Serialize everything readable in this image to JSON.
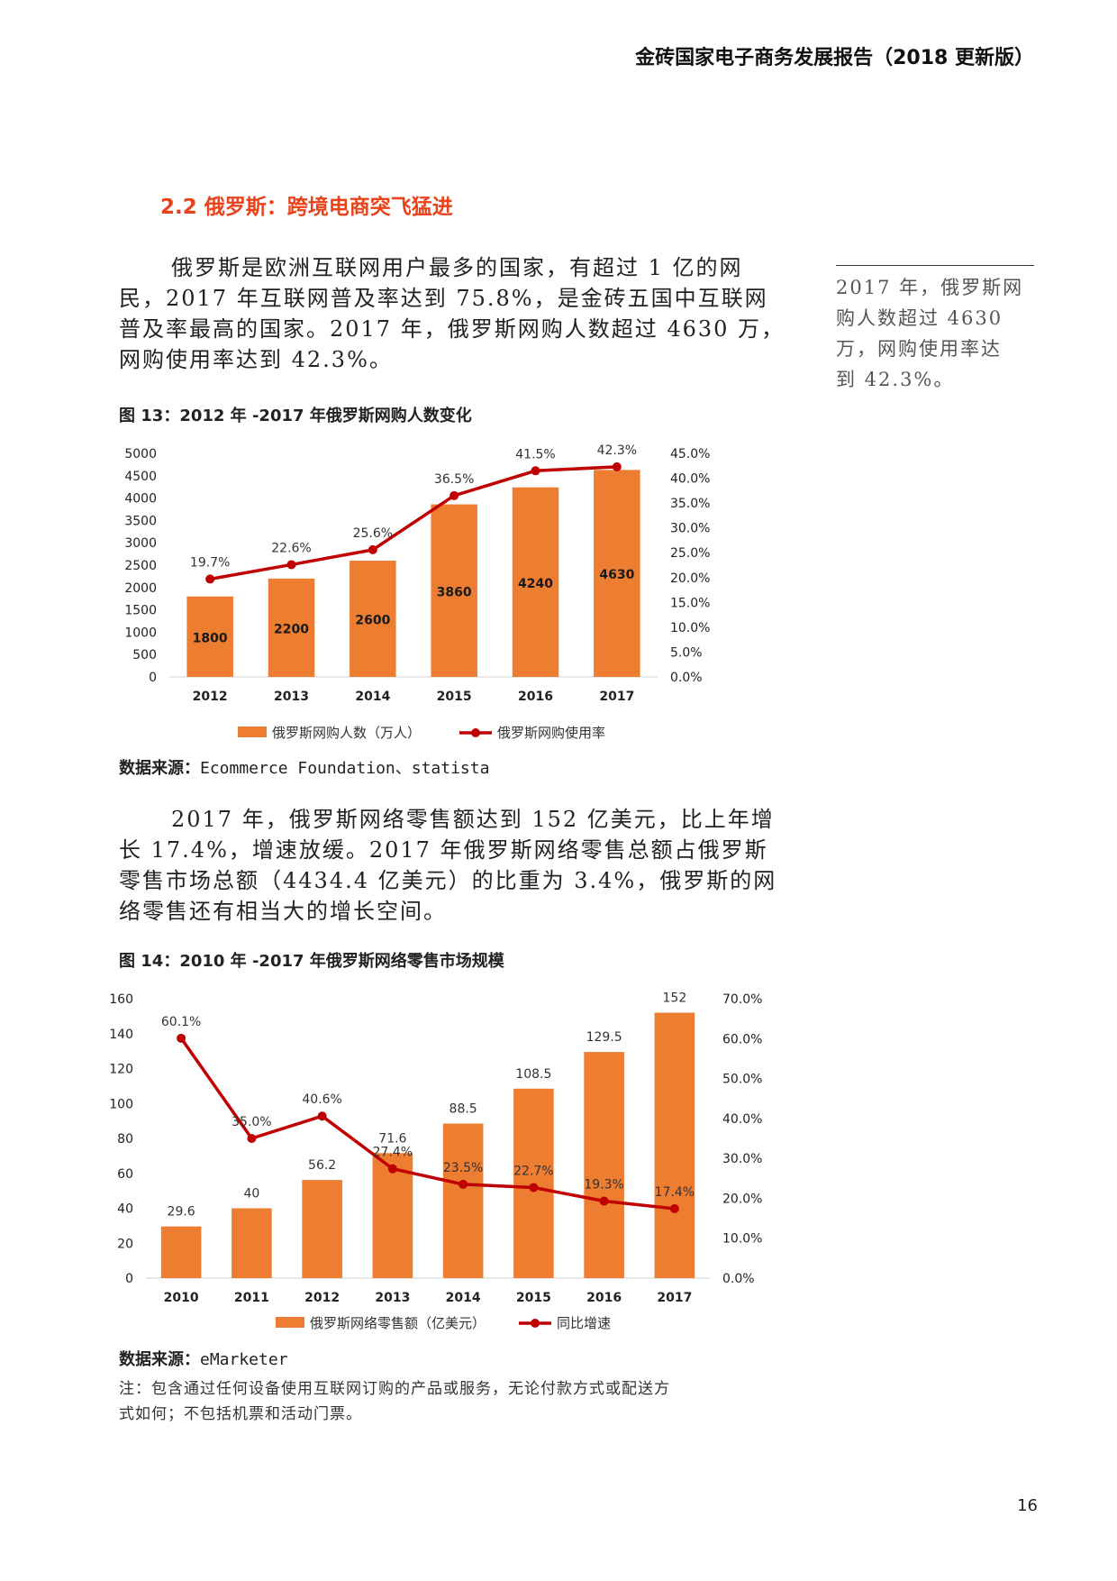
{
  "header": {
    "title": "金砖国家电子商务发展报告（2018 更新版）"
  },
  "section": {
    "title": "2.2 俄罗斯：跨境电商突飞猛进"
  },
  "paragraph1": {
    "lines": [
      "俄罗斯是欧洲互联网用户最多的国家，有超过 1 亿的网",
      "民，2017 年互联网普及率达到 75.8%，是金砖五国中互联网",
      "普及率最高的国家。2017 年，俄罗斯网购人数超过 4630 万，",
      "网购使用率达到 42.3%。"
    ]
  },
  "sidenote": {
    "lines": [
      "2017 年，俄罗斯网",
      "购人数超过 4630",
      "万，网购使用率达",
      "到 42.3%。"
    ]
  },
  "figure13": {
    "caption": "图 13：2012 年 -2017 年俄罗斯网购人数变化",
    "source_label": "数据来源：",
    "source_text": "Ecommerce Foundation、statista"
  },
  "paragraph2": {
    "lines": [
      "2017 年，俄罗斯网络零售额达到 152 亿美元，比上年增",
      "长 17.4%，增速放缓。2017 年俄罗斯网络零售总额占俄罗斯",
      "零售市场总额（4434.4 亿美元）的比重为 3.4%，俄罗斯的网",
      "络零售还有相当大的增长空间。"
    ]
  },
  "figure14": {
    "caption": "图 14：2010 年 -2017 年俄罗斯网络零售市场规模",
    "source_label": "数据来源：",
    "source_text": "eMarketer",
    "note_lines": [
      "注：包含通过任何设备使用互联网订购的产品或服务，无论付款方式或配送方",
      "式如何；不包括机票和活动门票。"
    ]
  },
  "page": {
    "number": "16"
  },
  "colors": {
    "bar": "#ed7d31",
    "line": "#c00000",
    "title": "#e8431b"
  },
  "chart_data": [
    {
      "type": "bar",
      "title": "2012 年 -2017 年俄罗斯网购人数变化",
      "categories": [
        "2012",
        "2013",
        "2014",
        "2015",
        "2016",
        "2017"
      ],
      "series": [
        {
          "name": "俄罗斯网购人数（万人）",
          "kind": "bar",
          "axis": "left",
          "values": [
            1800,
            2200,
            2600,
            3860,
            4240,
            4630
          ],
          "labels": [
            "1800",
            "2200",
            "2600",
            "3860",
            "4240",
            "4630"
          ]
        },
        {
          "name": "俄罗斯网购使用率",
          "kind": "line",
          "axis": "right",
          "values": [
            19.7,
            22.6,
            25.6,
            36.5,
            41.5,
            42.3
          ],
          "labels": [
            "19.7%",
            "22.6%",
            "25.6%",
            "36.5%",
            "41.5%",
            "42.3%"
          ]
        }
      ],
      "ylim": [
        0,
        5000
      ],
      "yticks": [
        "0",
        "500",
        "1000",
        "1500",
        "2000",
        "2500",
        "3000",
        "3500",
        "4000",
        "4500",
        "5000"
      ],
      "y2lim": [
        0,
        45
      ],
      "y2ticks": [
        "0.0%",
        "5.0%",
        "10.0%",
        "15.0%",
        "20.0%",
        "25.0%",
        "30.0%",
        "35.0%",
        "40.0%",
        "45.0%"
      ]
    },
    {
      "type": "bar",
      "title": "2010 年 -2017 年俄罗斯网络零售市场规模",
      "categories": [
        "2010",
        "2011",
        "2012",
        "2013",
        "2014",
        "2015",
        "2016",
        "2017"
      ],
      "series": [
        {
          "name": "俄罗斯网络零售额（亿美元）",
          "kind": "bar",
          "axis": "left",
          "values": [
            29.6,
            40,
            56.2,
            71.6,
            88.5,
            108.5,
            129.5,
            152
          ],
          "labels": [
            "29.6",
            "40",
            "56.2",
            "71.6",
            "88.5",
            "108.5",
            "129.5",
            "152"
          ]
        },
        {
          "name": "同比增速",
          "kind": "line",
          "axis": "right",
          "values": [
            60.1,
            35.0,
            40.6,
            27.4,
            23.5,
            22.7,
            19.3,
            17.4
          ],
          "labels": [
            "60.1%",
            "35.0%",
            "40.6%",
            "27.4%",
            "23.5%",
            "22.7%",
            "19.3%",
            "17.4%"
          ]
        }
      ],
      "ylim": [
        0,
        160
      ],
      "yticks": [
        "0",
        "20",
        "40",
        "60",
        "80",
        "100",
        "120",
        "140",
        "160"
      ],
      "y2lim": [
        0,
        70
      ],
      "y2ticks": [
        "0.0%",
        "10.0%",
        "20.0%",
        "30.0%",
        "40.0%",
        "50.0%",
        "60.0%",
        "70.0%"
      ]
    }
  ]
}
